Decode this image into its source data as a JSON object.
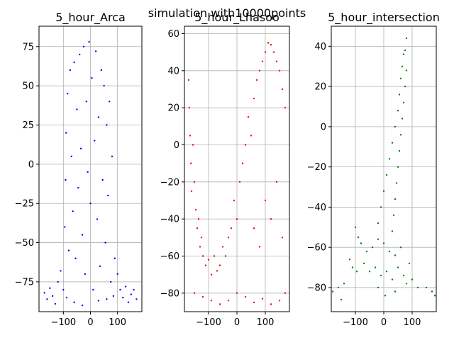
{
  "suptitle": "simulation with10000points",
  "chart_data": [
    {
      "type": "scatter",
      "title": "5_hour_Arca",
      "color": "#0000ff",
      "xlim": [
        -190,
        190
      ],
      "ylim": [
        -94,
        88
      ],
      "xticks": [
        -100,
        0,
        100
      ],
      "xtick_labels": [
        "−100",
        "0",
        "100"
      ],
      "yticks": [
        -75,
        -50,
        -25,
        0,
        25,
        50,
        75
      ],
      "ytick_labels": [
        "−75",
        "−50",
        "−25",
        "0",
        "25",
        "50",
        "75"
      ],
      "grid": true,
      "points": [
        [
          -170,
          -82
        ],
        [
          -160,
          -86
        ],
        [
          -150,
          -79
        ],
        [
          -140,
          -84
        ],
        [
          -130,
          -89
        ],
        [
          -120,
          -75
        ],
        [
          -110,
          -68
        ],
        [
          -100,
          -80
        ],
        [
          -95,
          -40
        ],
        [
          -92,
          -10
        ],
        [
          -90,
          20
        ],
        [
          -85,
          45
        ],
        [
          -80,
          -55
        ],
        [
          -75,
          60
        ],
        [
          -70,
          5
        ],
        [
          -65,
          -30
        ],
        [
          -60,
          65
        ],
        [
          -55,
          -60
        ],
        [
          -50,
          35
        ],
        [
          -45,
          -15
        ],
        [
          -40,
          70
        ],
        [
          -35,
          10
        ],
        [
          -30,
          -45
        ],
        [
          -25,
          75
        ],
        [
          -20,
          -70
        ],
        [
          -15,
          40
        ],
        [
          -10,
          -5
        ],
        [
          -5,
          78
        ],
        [
          0,
          -25
        ],
        [
          5,
          55
        ],
        [
          10,
          -80
        ],
        [
          15,
          15
        ],
        [
          20,
          72
        ],
        [
          25,
          -35
        ],
        [
          30,
          30
        ],
        [
          35,
          -65
        ],
        [
          40,
          60
        ],
        [
          45,
          -10
        ],
        [
          50,
          50
        ],
        [
          55,
          -50
        ],
        [
          60,
          25
        ],
        [
          65,
          -20
        ],
        [
          70,
          40
        ],
        [
          75,
          -75
        ],
        [
          80,
          5
        ],
        [
          90,
          -60
        ],
        [
          100,
          -70
        ],
        [
          110,
          -80
        ],
        [
          120,
          -85
        ],
        [
          130,
          -78
        ],
        [
          140,
          -88
        ],
        [
          150,
          -83
        ],
        [
          160,
          -80
        ],
        [
          170,
          -86
        ],
        [
          -88,
          -85
        ],
        [
          -60,
          -88
        ],
        [
          -30,
          -90
        ],
        [
          30,
          -87
        ],
        [
          60,
          -86
        ],
        [
          85,
          -84
        ]
      ]
    },
    {
      "type": "scatter",
      "title": "5_hour_Lhasoo",
      "color": "#ff0000",
      "xlim": [
        -185,
        185
      ],
      "ylim": [
        -90,
        64
      ],
      "xticks": [
        -100,
        0,
        100
      ],
      "xtick_labels": [
        "−100",
        "0",
        "100"
      ],
      "yticks": [
        -80,
        -60,
        -40,
        -20,
        0,
        20,
        40,
        60
      ],
      "ytick_labels": [
        "−80",
        "−60",
        "−40",
        "−20",
        "0",
        "20",
        "40",
        "60"
      ],
      "grid": true,
      "points": [
        [
          -170,
          35
        ],
        [
          -168,
          20
        ],
        [
          -165,
          5
        ],
        [
          -162,
          -10
        ],
        [
          -160,
          -25
        ],
        [
          -155,
          0
        ],
        [
          -150,
          -20
        ],
        [
          -145,
          -35
        ],
        [
          -140,
          -45
        ],
        [
          -135,
          -40
        ],
        [
          -130,
          -55
        ],
        [
          -125,
          -50
        ],
        [
          -120,
          -60
        ],
        [
          -110,
          -65
        ],
        [
          -100,
          -62
        ],
        [
          -90,
          -70
        ],
        [
          -80,
          -60
        ],
        [
          -70,
          -68
        ],
        [
          -60,
          -65
        ],
        [
          -50,
          -55
        ],
        [
          -40,
          -60
        ],
        [
          -30,
          -50
        ],
        [
          -20,
          -45
        ],
        [
          -10,
          -30
        ],
        [
          0,
          -40
        ],
        [
          10,
          -20
        ],
        [
          20,
          -10
        ],
        [
          30,
          0
        ],
        [
          40,
          15
        ],
        [
          50,
          5
        ],
        [
          60,
          25
        ],
        [
          70,
          35
        ],
        [
          80,
          40
        ],
        [
          90,
          45
        ],
        [
          100,
          50
        ],
        [
          110,
          55
        ],
        [
          120,
          54
        ],
        [
          130,
          50
        ],
        [
          140,
          45
        ],
        [
          150,
          40
        ],
        [
          160,
          30
        ],
        [
          170,
          20
        ],
        [
          100,
          -30
        ],
        [
          120,
          -40
        ],
        [
          140,
          -20
        ],
        [
          160,
          -50
        ],
        [
          80,
          -55
        ],
        [
          60,
          -45
        ],
        [
          -150,
          -80
        ],
        [
          -120,
          -82
        ],
        [
          -90,
          -84
        ],
        [
          -60,
          -86
        ],
        [
          -30,
          -84
        ],
        [
          0,
          -80
        ],
        [
          30,
          -82
        ],
        [
          60,
          -85
        ],
        [
          90,
          -83
        ],
        [
          120,
          -86
        ],
        [
          150,
          -84
        ],
        [
          170,
          -80
        ]
      ]
    },
    {
      "type": "scatter",
      "title": "5_hour_intersection",
      "color": "#007f00",
      "xlim": [
        -185,
        185
      ],
      "ylim": [
        -92,
        50
      ],
      "xticks": [
        -100,
        0,
        100
      ],
      "xtick_labels": [
        "−100",
        "0",
        "100"
      ],
      "yticks": [
        -80,
        -60,
        -40,
        -20,
        0,
        20,
        40
      ],
      "ytick_labels": [
        "−80",
        "−60",
        "−40",
        "−20",
        "0",
        "20",
        "40"
      ],
      "grid": true,
      "points": [
        [
          80,
          44
        ],
        [
          75,
          38
        ],
        [
          70,
          36
        ],
        [
          65,
          30
        ],
        [
          80,
          28
        ],
        [
          60,
          24
        ],
        [
          75,
          20
        ],
        [
          55,
          16
        ],
        [
          70,
          12
        ],
        [
          50,
          8
        ],
        [
          65,
          4
        ],
        [
          40,
          0
        ],
        [
          60,
          -4
        ],
        [
          30,
          -8
        ],
        [
          55,
          -12
        ],
        [
          20,
          -16
        ],
        [
          50,
          -20
        ],
        [
          10,
          -24
        ],
        [
          45,
          -28
        ],
        [
          0,
          -32
        ],
        [
          40,
          -36
        ],
        [
          -10,
          -40
        ],
        [
          35,
          -44
        ],
        [
          -20,
          -48
        ],
        [
          30,
          -52
        ],
        [
          -100,
          -50
        ],
        [
          -90,
          -55
        ],
        [
          -80,
          -58
        ],
        [
          -60,
          -62
        ],
        [
          -40,
          -60
        ],
        [
          -20,
          -56
        ],
        [
          0,
          -58
        ],
        [
          20,
          -62
        ],
        [
          40,
          -64
        ],
        [
          60,
          -60
        ],
        [
          -120,
          -66
        ],
        [
          -110,
          -70
        ],
        [
          -95,
          -72
        ],
        [
          -70,
          -68
        ],
        [
          -50,
          -72
        ],
        [
          -30,
          -70
        ],
        [
          -10,
          -74
        ],
        [
          10,
          -72
        ],
        [
          30,
          -76
        ],
        [
          50,
          -70
        ],
        [
          70,
          -74
        ],
        [
          90,
          -68
        ],
        [
          -140,
          -78
        ],
        [
          -150,
          -86
        ],
        [
          -160,
          -80
        ],
        [
          -180,
          -82
        ],
        [
          -20,
          -80
        ],
        [
          5,
          -84
        ],
        [
          40,
          -82
        ],
        [
          80,
          -78
        ],
        [
          100,
          -76
        ],
        [
          120,
          -80
        ],
        [
          150,
          -80
        ],
        [
          170,
          -82
        ],
        [
          180,
          -84
        ]
      ]
    }
  ]
}
